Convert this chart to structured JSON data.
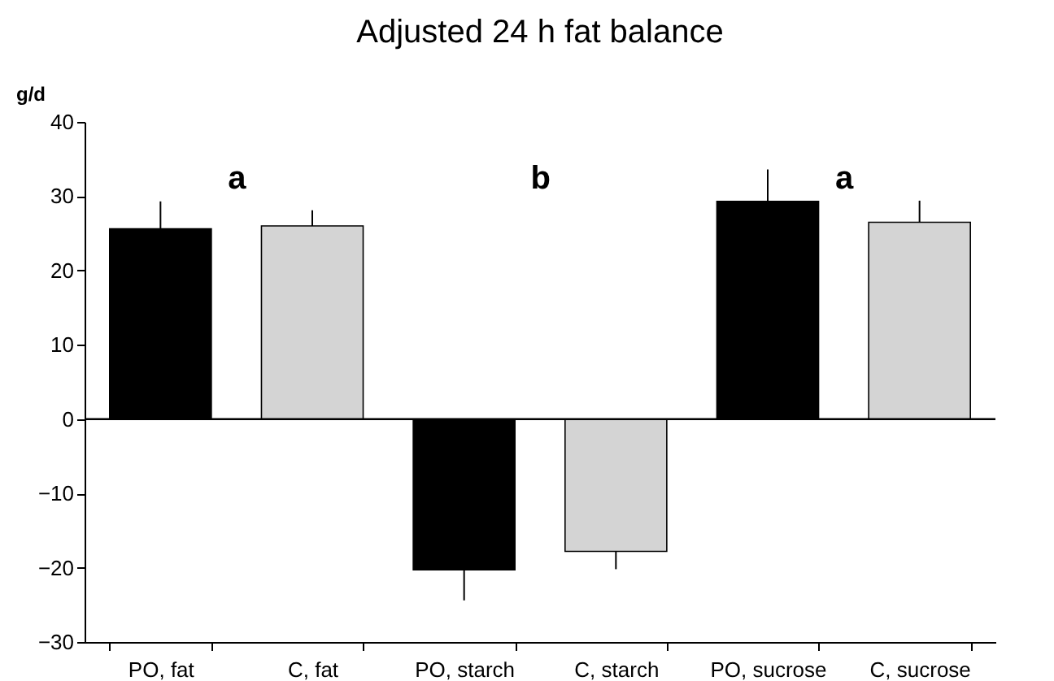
{
  "chart_data": {
    "type": "bar",
    "title": "Adjusted 24 h fat balance",
    "ylabel": "g/d",
    "categories": [
      "PO, fat",
      "C, fat",
      "PO, starch",
      "C, starch",
      "PO, sucrose",
      "C, sucrose"
    ],
    "values": [
      25.6,
      26.0,
      -20.3,
      -17.8,
      29.3,
      26.5
    ],
    "errors": [
      [
        25.6,
        29.3
      ],
      [
        26.0,
        28.1
      ],
      [
        -24.4,
        -20.3
      ],
      [
        -20.2,
        -17.8
      ],
      [
        29.3,
        33.6
      ],
      [
        26.5,
        29.4
      ]
    ],
    "colors": [
      "#000000",
      "#d4d4d4",
      "#000000",
      "#d4d4d4",
      "#000000",
      "#d4d4d4"
    ],
    "annotations": [
      "a",
      "b",
      "a"
    ],
    "ylim": [
      -30,
      40
    ],
    "yticks": [
      -30,
      -20,
      -10,
      0,
      10,
      20,
      30,
      40
    ],
    "ref_lines": [
      {
        "axis": "y",
        "value": 0,
        "color": "#000000"
      }
    ],
    "grid": false
  }
}
